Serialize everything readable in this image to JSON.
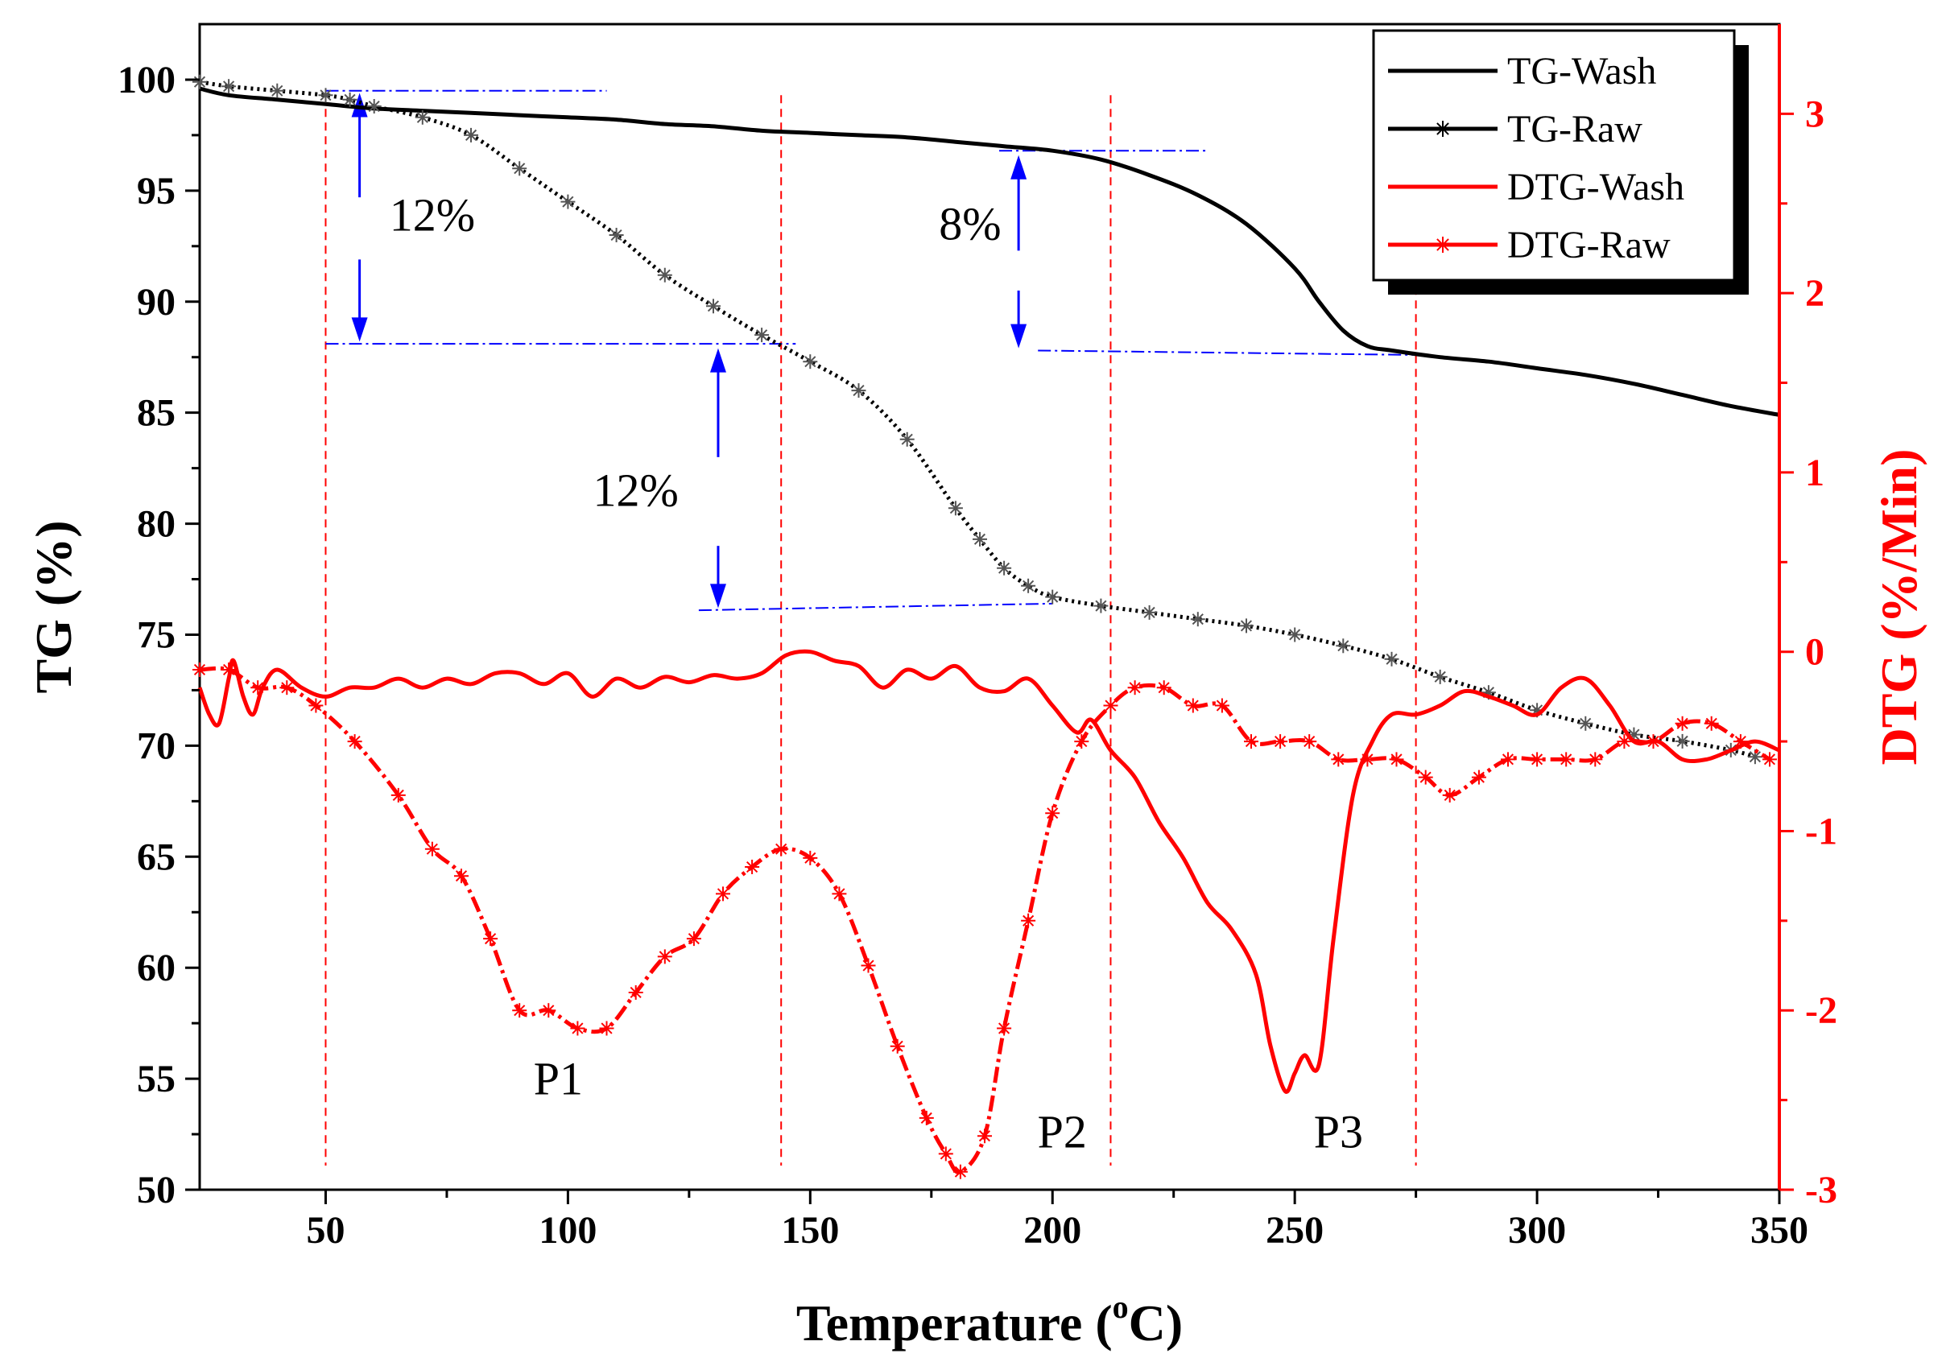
{
  "chart_data": {
    "type": "line",
    "xlabel": {
      "main": "Temperature (",
      "sup": "o",
      "unit": "C)"
    },
    "ylabel_left": "TG (%)",
    "ylabel_right": "DTG (%/Min)",
    "xlim": [
      24,
      350
    ],
    "ylim_left": [
      50,
      102.5
    ],
    "ylim_right": [
      -3,
      3.5
    ],
    "x_ticks": [
      50,
      100,
      150,
      200,
      250,
      300,
      350
    ],
    "y_ticks_left": [
      50,
      55,
      60,
      65,
      70,
      75,
      80,
      85,
      90,
      95,
      100
    ],
    "y_ticks_right": [
      -3,
      -2,
      -1,
      0,
      1,
      2,
      3
    ],
    "colors": {
      "tg": "#000000",
      "dtg": "#ff0000",
      "guide": "#0000ff",
      "vref": "#ff0000"
    },
    "series": [
      {
        "name": "TG-Wash",
        "axis": "left",
        "marker": "none",
        "points": [
          [
            24,
            99.6
          ],
          [
            30,
            99.3
          ],
          [
            40,
            99.1
          ],
          [
            50,
            98.9
          ],
          [
            60,
            98.7
          ],
          [
            70,
            98.6
          ],
          [
            80,
            98.5
          ],
          [
            90,
            98.4
          ],
          [
            100,
            98.3
          ],
          [
            110,
            98.2
          ],
          [
            120,
            98.0
          ],
          [
            130,
            97.9
          ],
          [
            140,
            97.7
          ],
          [
            150,
            97.6
          ],
          [
            160,
            97.5
          ],
          [
            170,
            97.4
          ],
          [
            180,
            97.2
          ],
          [
            190,
            97.0
          ],
          [
            200,
            96.8
          ],
          [
            210,
            96.4
          ],
          [
            220,
            95.7
          ],
          [
            230,
            94.8
          ],
          [
            240,
            93.5
          ],
          [
            250,
            91.5
          ],
          [
            255,
            90.0
          ],
          [
            260,
            88.7
          ],
          [
            265,
            88.0
          ],
          [
            270,
            87.8
          ],
          [
            280,
            87.5
          ],
          [
            290,
            87.3
          ],
          [
            300,
            87.0
          ],
          [
            310,
            86.7
          ],
          [
            320,
            86.3
          ],
          [
            330,
            85.8
          ],
          [
            340,
            85.3
          ],
          [
            350,
            84.9
          ]
        ]
      },
      {
        "name": "TG-Raw",
        "axis": "left",
        "marker": "asterisk",
        "points": [
          [
            24,
            99.9
          ],
          [
            30,
            99.7
          ],
          [
            40,
            99.5
          ],
          [
            50,
            99.3
          ],
          [
            55,
            99.1
          ],
          [
            60,
            98.8
          ],
          [
            70,
            98.3
          ],
          [
            80,
            97.5
          ],
          [
            90,
            96.0
          ],
          [
            100,
            94.5
          ],
          [
            110,
            93.0
          ],
          [
            120,
            91.2
          ],
          [
            130,
            89.8
          ],
          [
            140,
            88.5
          ],
          [
            150,
            87.3
          ],
          [
            160,
            86.0
          ],
          [
            170,
            83.8
          ],
          [
            180,
            80.7
          ],
          [
            185,
            79.3
          ],
          [
            190,
            78.0
          ],
          [
            195,
            77.2
          ],
          [
            200,
            76.7
          ],
          [
            210,
            76.3
          ],
          [
            220,
            76.0
          ],
          [
            230,
            75.7
          ],
          [
            240,
            75.4
          ],
          [
            250,
            75.0
          ],
          [
            260,
            74.5
          ],
          [
            270,
            73.9
          ],
          [
            280,
            73.1
          ],
          [
            290,
            72.4
          ],
          [
            300,
            71.6
          ],
          [
            310,
            71.0
          ],
          [
            320,
            70.5
          ],
          [
            330,
            70.2
          ],
          [
            340,
            69.8
          ],
          [
            345,
            69.5
          ]
        ]
      },
      {
        "name": "DTG-Wash",
        "axis": "right",
        "marker": "none",
        "points": [
          [
            24,
            -0.2
          ],
          [
            26,
            -0.35
          ],
          [
            28,
            -0.4
          ],
          [
            30,
            -0.15
          ],
          [
            31,
            -0.05
          ],
          [
            33,
            -0.25
          ],
          [
            35,
            -0.35
          ],
          [
            37,
            -0.2
          ],
          [
            40,
            -0.1
          ],
          [
            45,
            -0.2
          ],
          [
            50,
            -0.25
          ],
          [
            55,
            -0.2
          ],
          [
            60,
            -0.2
          ],
          [
            65,
            -0.15
          ],
          [
            70,
            -0.2
          ],
          [
            75,
            -0.15
          ],
          [
            80,
            -0.18
          ],
          [
            85,
            -0.12
          ],
          [
            90,
            -0.12
          ],
          [
            95,
            -0.18
          ],
          [
            100,
            -0.12
          ],
          [
            105,
            -0.25
          ],
          [
            110,
            -0.15
          ],
          [
            115,
            -0.2
          ],
          [
            120,
            -0.14
          ],
          [
            125,
            -0.17
          ],
          [
            130,
            -0.13
          ],
          [
            135,
            -0.15
          ],
          [
            140,
            -0.12
          ],
          [
            145,
            -0.02
          ],
          [
            150,
            0.0
          ],
          [
            155,
            -0.05
          ],
          [
            160,
            -0.08
          ],
          [
            165,
            -0.2
          ],
          [
            170,
            -0.1
          ],
          [
            175,
            -0.15
          ],
          [
            180,
            -0.08
          ],
          [
            185,
            -0.2
          ],
          [
            190,
            -0.22
          ],
          [
            195,
            -0.15
          ],
          [
            200,
            -0.3
          ],
          [
            205,
            -0.45
          ],
          [
            208,
            -0.38
          ],
          [
            212,
            -0.55
          ],
          [
            217,
            -0.7
          ],
          [
            222,
            -0.95
          ],
          [
            227,
            -1.15
          ],
          [
            232,
            -1.4
          ],
          [
            237,
            -1.55
          ],
          [
            242,
            -1.8
          ],
          [
            245,
            -2.2
          ],
          [
            248,
            -2.45
          ],
          [
            250,
            -2.35
          ],
          [
            252,
            -2.25
          ],
          [
            255,
            -2.3
          ],
          [
            258,
            -1.6
          ],
          [
            262,
            -0.8
          ],
          [
            266,
            -0.5
          ],
          [
            270,
            -0.35
          ],
          [
            275,
            -0.35
          ],
          [
            280,
            -0.3
          ],
          [
            285,
            -0.22
          ],
          [
            290,
            -0.25
          ],
          [
            295,
            -0.3
          ],
          [
            300,
            -0.35
          ],
          [
            305,
            -0.2
          ],
          [
            310,
            -0.15
          ],
          [
            315,
            -0.3
          ],
          [
            320,
            -0.5
          ],
          [
            325,
            -0.5
          ],
          [
            330,
            -0.6
          ],
          [
            335,
            -0.6
          ],
          [
            340,
            -0.55
          ],
          [
            345,
            -0.5
          ],
          [
            350,
            -0.55
          ]
        ]
      },
      {
        "name": "DTG-Raw",
        "axis": "right",
        "marker": "asterisk",
        "points": [
          [
            24,
            -0.1
          ],
          [
            30,
            -0.1
          ],
          [
            36,
            -0.2
          ],
          [
            42,
            -0.2
          ],
          [
            48,
            -0.3
          ],
          [
            56,
            -0.5
          ],
          [
            65,
            -0.8
          ],
          [
            72,
            -1.1
          ],
          [
            78,
            -1.25
          ],
          [
            84,
            -1.6
          ],
          [
            90,
            -2.0
          ],
          [
            96,
            -2.0
          ],
          [
            102,
            -2.1
          ],
          [
            108,
            -2.1
          ],
          [
            114,
            -1.9
          ],
          [
            120,
            -1.7
          ],
          [
            126,
            -1.6
          ],
          [
            132,
            -1.35
          ],
          [
            138,
            -1.2
          ],
          [
            144,
            -1.1
          ],
          [
            150,
            -1.15
          ],
          [
            156,
            -1.35
          ],
          [
            162,
            -1.75
          ],
          [
            168,
            -2.2
          ],
          [
            174,
            -2.6
          ],
          [
            178,
            -2.8
          ],
          [
            181,
            -2.9
          ],
          [
            186,
            -2.7
          ],
          [
            190,
            -2.1
          ],
          [
            195,
            -1.5
          ],
          [
            200,
            -0.9
          ],
          [
            206,
            -0.5
          ],
          [
            212,
            -0.3
          ],
          [
            217,
            -0.2
          ],
          [
            223,
            -0.2
          ],
          [
            229,
            -0.3
          ],
          [
            235,
            -0.3
          ],
          [
            241,
            -0.5
          ],
          [
            247,
            -0.5
          ],
          [
            253,
            -0.5
          ],
          [
            259,
            -0.6
          ],
          [
            265,
            -0.6
          ],
          [
            271,
            -0.6
          ],
          [
            277,
            -0.7
          ],
          [
            282,
            -0.8
          ],
          [
            288,
            -0.7
          ],
          [
            294,
            -0.6
          ],
          [
            300,
            -0.6
          ],
          [
            306,
            -0.6
          ],
          [
            312,
            -0.6
          ],
          [
            318,
            -0.5
          ],
          [
            324,
            -0.5
          ],
          [
            330,
            -0.4
          ],
          [
            336,
            -0.4
          ],
          [
            342,
            -0.5
          ],
          [
            348,
            -0.6
          ]
        ]
      }
    ],
    "annotations": [
      {
        "text": "12%",
        "x": 72,
        "y": 93.2
      },
      {
        "text": "12%",
        "x": 114,
        "y": 80.8
      },
      {
        "text": "8%",
        "x": 183,
        "y": 92.8
      },
      {
        "text": "P1",
        "x": 98,
        "y": 54.3
      },
      {
        "text": "P2",
        "x": 202,
        "y": 51.9
      },
      {
        "text": "P3",
        "x": 259,
        "y": 51.9
      }
    ],
    "guides": [
      {
        "x1": 50,
        "y1": 99.5,
        "x2": 108,
        "y2": 99.5
      },
      {
        "x1": 50,
        "y1": 88.1,
        "x2": 147,
        "y2": 88.1
      },
      {
        "x1": 127,
        "y1": 76.1,
        "x2": 200,
        "y2": 76.4
      },
      {
        "x1": 189,
        "y1": 96.8,
        "x2": 232,
        "y2": 96.8
      },
      {
        "x1": 197,
        "y1": 87.8,
        "x2": 275,
        "y2": 87.6
      }
    ],
    "arrows": [
      {
        "x": 57,
        "y_from": 94.7,
        "y_to": 99.4
      },
      {
        "x": 57,
        "y_from": 91.9,
        "y_to": 88.2
      },
      {
        "x": 131,
        "y_from": 83.0,
        "y_to": 87.9
      },
      {
        "x": 131,
        "y_from": 79.0,
        "y_to": 76.2
      },
      {
        "x": 193,
        "y_from": 92.3,
        "y_to": 96.6
      },
      {
        "x": 193,
        "y_from": 90.5,
        "y_to": 87.9
      }
    ],
    "vlines": [
      50,
      144,
      212,
      275
    ],
    "legend": {
      "position": "top-right",
      "entries": [
        "TG-Wash",
        "TG-Raw",
        "DTG-Wash",
        "DTG-Raw"
      ]
    }
  }
}
